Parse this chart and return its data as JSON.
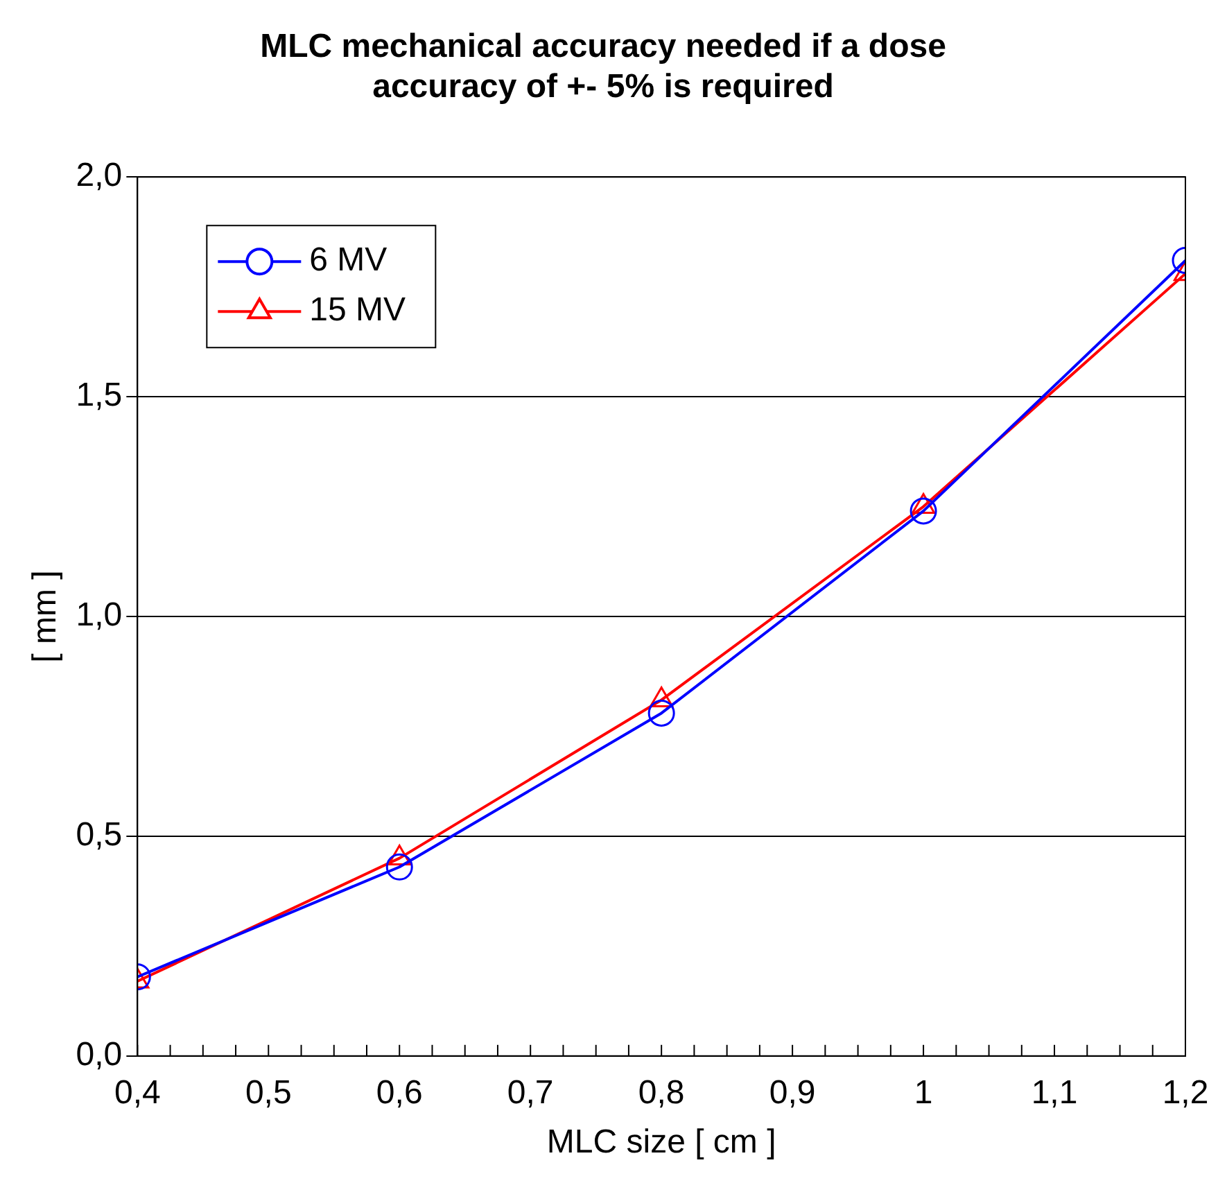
{
  "chart_data": {
    "type": "line",
    "title": [
      "MLC mechanical accuracy needed if a dose",
      "accuracy of +- 5% is required"
    ],
    "xlabel": "MLC size [ cm ]",
    "ylabel": "[ mm ]",
    "x": [
      0.4,
      0.6,
      0.8,
      1.0,
      1.2
    ],
    "series": [
      {
        "name": "6 MV",
        "color": "#0000ff",
        "marker": "circle",
        "values": [
          0.18,
          0.43,
          0.78,
          1.24,
          1.81
        ]
      },
      {
        "name": "15 MV",
        "color": "#ff0000",
        "marker": "triangle",
        "values": [
          0.17,
          0.45,
          0.81,
          1.25,
          1.78
        ]
      }
    ],
    "xlim": [
      0.4,
      1.2
    ],
    "xticks": [
      {
        "value": 0.4,
        "label": "0,4"
      },
      {
        "value": 0.5,
        "label": "0,5"
      },
      {
        "value": 0.6,
        "label": "0,6"
      },
      {
        "value": 0.7,
        "label": "0,7"
      },
      {
        "value": 0.8,
        "label": "0,8"
      },
      {
        "value": 0.9,
        "label": "0,9"
      },
      1,
      {
        "value": 1.1,
        "label": "1,1"
      },
      {
        "value": 1.2,
        "label": "1,2"
      }
    ],
    "ylim": [
      0,
      2
    ],
    "yticks": [
      {
        "value": 0,
        "label": "0,0"
      },
      {
        "value": 0.5,
        "label": "0,5"
      },
      {
        "value": 1,
        "label": "1,0"
      },
      {
        "value": 1.5,
        "label": "1,5"
      },
      {
        "value": 2,
        "label": "2,0"
      }
    ],
    "grid": "y",
    "legend": "top left",
    "line_style": "solid"
  }
}
